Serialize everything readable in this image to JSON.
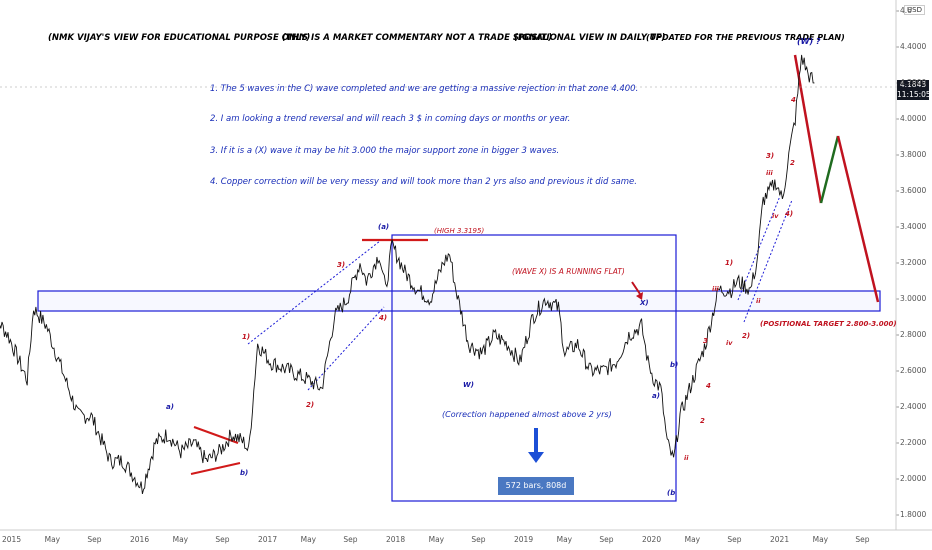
{
  "headers": [
    {
      "text": "(NMK VIJAY'S VIEW FOR EDUCATIONAL PURPOSE ONLY)",
      "color": "#c0121f"
    },
    {
      "text": "(THIS IS A MARKET COMMENTARY NOT A TRADE SIGNAL)",
      "color": "#1b6b1b"
    },
    {
      "text": "(POSITIONAL VIEW IN DAILY TF)",
      "color": "#c2185b"
    },
    {
      "text": "(UPDATED FOR THE PREVIOUS TRADE PLAN)",
      "color": "#1a1aa6"
    }
  ],
  "notes": [
    "1. The 5 waves in the C) wave completed and we are getting a massive rejection in that zone 4.400.",
    "2. I am looking a trend reversal and will reach 3 $ in coming days or months or year.",
    "3. If it is a (X) wave it may be hit 3.000 the major support zone in bigger 3 waves.",
    "4. Copper correction will be very messy and will took more than 2 yrs also and previous it did same."
  ],
  "annotations": {
    "high": "(HIGH 3.3195)",
    "running_flat": "(WAVE X) IS A RUNNING FLAT)",
    "correction": "(Correction happened almost above 2 yrs)",
    "bars": "572 bars, 808d",
    "target": "(POSITIONAL TARGET 2.800-3.000)"
  },
  "price": {
    "value": "4.1843",
    "time": "11:15:05",
    "currency": "USD"
  },
  "chart_data": {
    "type": "line",
    "title": "",
    "instrument_note": "Copper daily with Elliott wave count",
    "y_ticks": [
      1.8,
      2.0,
      2.2,
      2.4,
      2.6,
      2.8,
      3.0,
      3.2,
      3.4,
      3.6,
      3.8,
      4.0,
      4.2,
      4.4,
      4.6
    ],
    "y_tick_labels": [
      "1.8000",
      "2.0000",
      "2.2000",
      "2.4000",
      "2.6000",
      "2.8000",
      "3.0000",
      "3.2000",
      "3.4000",
      "3.6000",
      "3.8000",
      "4.0000",
      "4.2000",
      "4.4000",
      "4.6"
    ],
    "x_ticks": [
      "2015",
      "May",
      "Sep",
      "2016",
      "May",
      "Sep",
      "2017",
      "May",
      "Sep",
      "2018",
      "May",
      "Sep",
      "2019",
      "May",
      "Sep",
      "2020",
      "May",
      "Sep",
      "2021",
      "May",
      "Sep"
    ],
    "ylim": [
      1.75,
      4.65
    ],
    "series": [
      {
        "name": "",
        "x": [
          2014.85,
          2015.0,
          2015.15,
          2015.2,
          2015.3,
          2015.35,
          2015.45,
          2015.55,
          2015.65,
          2015.8,
          2015.9,
          2016.0,
          2016.05,
          2016.15,
          2016.25,
          2016.35,
          2016.45,
          2016.55,
          2016.65,
          2016.75,
          2016.85,
          2016.88,
          2016.95,
          2017.05,
          2017.2,
          2017.35,
          2017.45,
          2017.55,
          2017.65,
          2017.75,
          2017.8,
          2017.9,
          2017.95,
          2018.0,
          2018.1,
          2018.2,
          2018.3,
          2018.4,
          2018.45,
          2018.5,
          2018.6,
          2018.7,
          2018.8,
          2018.9,
          2019.0,
          2019.1,
          2019.2,
          2019.3,
          2019.35,
          2019.45,
          2019.55,
          2019.65,
          2019.75,
          2019.85,
          2019.95,
          2020.0,
          2020.05,
          2020.1,
          2020.15,
          2020.2,
          2020.25,
          2020.35,
          2020.45,
          2020.55,
          2020.65,
          2020.7,
          2020.8,
          2020.85,
          2020.9,
          2021.0,
          2021.05,
          2021.1,
          2021.15,
          2021.2,
          2021.25,
          2021.3
        ],
        "y": [
          2.95,
          2.8,
          2.55,
          2.95,
          2.85,
          2.75,
          2.55,
          2.35,
          2.35,
          2.1,
          2.1,
          2.0,
          1.95,
          2.2,
          2.25,
          2.15,
          2.2,
          2.1,
          2.15,
          2.25,
          2.2,
          2.15,
          2.75,
          2.65,
          2.6,
          2.55,
          2.5,
          2.9,
          3.0,
          3.2,
          3.1,
          3.25,
          3.05,
          3.3,
          3.15,
          3.05,
          3.0,
          3.2,
          3.25,
          3.05,
          2.75,
          2.7,
          2.8,
          2.75,
          2.65,
          2.9,
          3.0,
          2.95,
          2.7,
          2.75,
          2.6,
          2.6,
          2.65,
          2.8,
          2.85,
          2.65,
          2.55,
          2.5,
          2.2,
          2.1,
          2.35,
          2.55,
          2.75,
          3.05,
          3.05,
          3.1,
          3.05,
          3.2,
          3.55,
          3.65,
          3.55,
          3.8,
          4.0,
          4.35,
          4.25,
          4.2
        ]
      }
    ]
  }
}
